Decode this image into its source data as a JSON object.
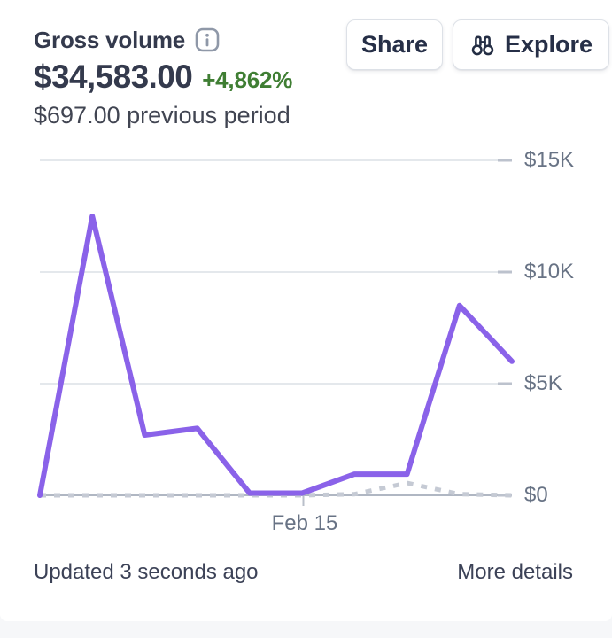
{
  "header": {
    "title": "Gross volume",
    "amount": "$34,583.00",
    "delta": "+4,862%",
    "previous_period_text": "$697.00 previous period",
    "buttons": {
      "share": "Share",
      "explore": "Explore"
    }
  },
  "footer": {
    "updated": "Updated 3 seconds ago",
    "more_details": "More details"
  },
  "colors": {
    "accent_purple": "#8a62e9",
    "previous_dash_gray": "#c5cad4",
    "delta_green": "#3f7e33",
    "axis_label_gray": "#687385",
    "text_dark": "#343a4d",
    "text_secondary": "#414552",
    "card_background": "#ffffff",
    "page_background": "#f6f7f9"
  },
  "chart_data": {
    "type": "line",
    "title": "Gross volume",
    "ylim": [
      0,
      15000
    ],
    "yticks": [
      {
        "label": "$0",
        "value": 0
      },
      {
        "label": "$5K",
        "value": 5000
      },
      {
        "label": "$10K",
        "value": 10000
      },
      {
        "label": "$15K",
        "value": 15000
      }
    ],
    "x_visible_tick": {
      "label": "Feb 15",
      "index": 5
    },
    "grid": "horizontal",
    "legend": "none",
    "series": [
      {
        "name": "current period",
        "style": "solid",
        "color": "#8a62e9",
        "values": [
          0,
          12500,
          2700,
          3000,
          100,
          100,
          950,
          950,
          8500,
          6000
        ]
      },
      {
        "name": "previous period",
        "style": "dashed",
        "color": "#c5cad4",
        "values": [
          0,
          0,
          0,
          0,
          0,
          0,
          50,
          550,
          50,
          0
        ]
      }
    ]
  }
}
